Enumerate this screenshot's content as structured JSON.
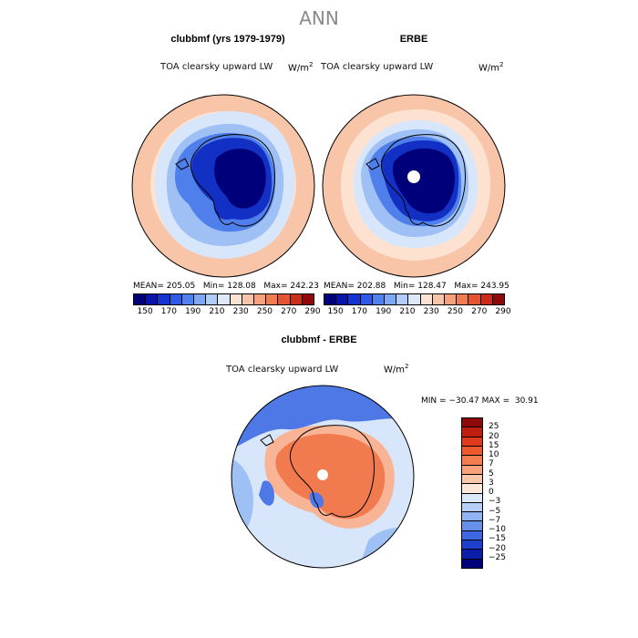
{
  "figure": {
    "title": "ANN"
  },
  "panels": {
    "model": {
      "title": "clubbmf (yrs 1979-1979)",
      "field": "TOA clearsky upward LW",
      "units_base": "W/m",
      "units_exp": "2",
      "mean_label": "MEAN=",
      "mean": "205.05",
      "min_label": "Min=",
      "min": "128.08",
      "max_label": "Max=",
      "max": "242.23"
    },
    "obs": {
      "title": "ERBE",
      "field": "TOA clearsky upward LW",
      "units_base": "W/m",
      "units_exp": "2",
      "mean_label": "MEAN=",
      "mean": "202.88",
      "min_label": "Min=",
      "min": "128.47",
      "max_label": "Max=",
      "max": "243.95"
    },
    "diff": {
      "title": "clubbmf - ERBE",
      "field": "TOA clearsky upward LW",
      "units_base": "W/m",
      "units_exp": "2",
      "min_label": "MIN =",
      "min": "−30.47",
      "max_label": "MAX =",
      "max": "30.91"
    }
  },
  "colorbar_abs": {
    "colors": [
      "#00007a",
      "#0a14a8",
      "#1634d0",
      "#2d5be8",
      "#4f82f0",
      "#7ea8f5",
      "#b0ccf8",
      "#dde9fb",
      "#fbe2d2",
      "#f9c5a9",
      "#f6a07c",
      "#f07c54",
      "#e45433",
      "#cc2d1a",
      "#8e0a0a"
    ],
    "labels": [
      "150",
      "170",
      "190",
      "210",
      "230",
      "250",
      "270",
      "290"
    ]
  },
  "colorbar_diff": {
    "colors": [
      "#8e0a0a",
      "#c01f10",
      "#e0391c",
      "#ef5a2c",
      "#f47d4f",
      "#f8a27c",
      "#fbc7aa",
      "#fde7d8",
      "#dbe8fb",
      "#b6cff8",
      "#8fb3f3",
      "#6590ec",
      "#3d68e2",
      "#1e3fcc",
      "#0a1ea8",
      "#00007a"
    ],
    "labels": [
      "25",
      "20",
      "15",
      "10",
      "7",
      "5",
      "3",
      "0",
      "−3",
      "−5",
      "−7",
      "−10",
      "−15",
      "−20",
      "−25"
    ]
  },
  "map_colors": {
    "outer_warm": "#f9c5a9",
    "pale_warm": "#fde2d2",
    "pale_cool": "#d8e6fb",
    "light_blue": "#9fc0f5",
    "mid_blue": "#4f7fea",
    "deep_blue": "#1230c4",
    "darkest": "#00007a",
    "diff_red": "#f17a4e",
    "diff_pink": "#f8b494",
    "diff_blue": "#4d78e6"
  }
}
